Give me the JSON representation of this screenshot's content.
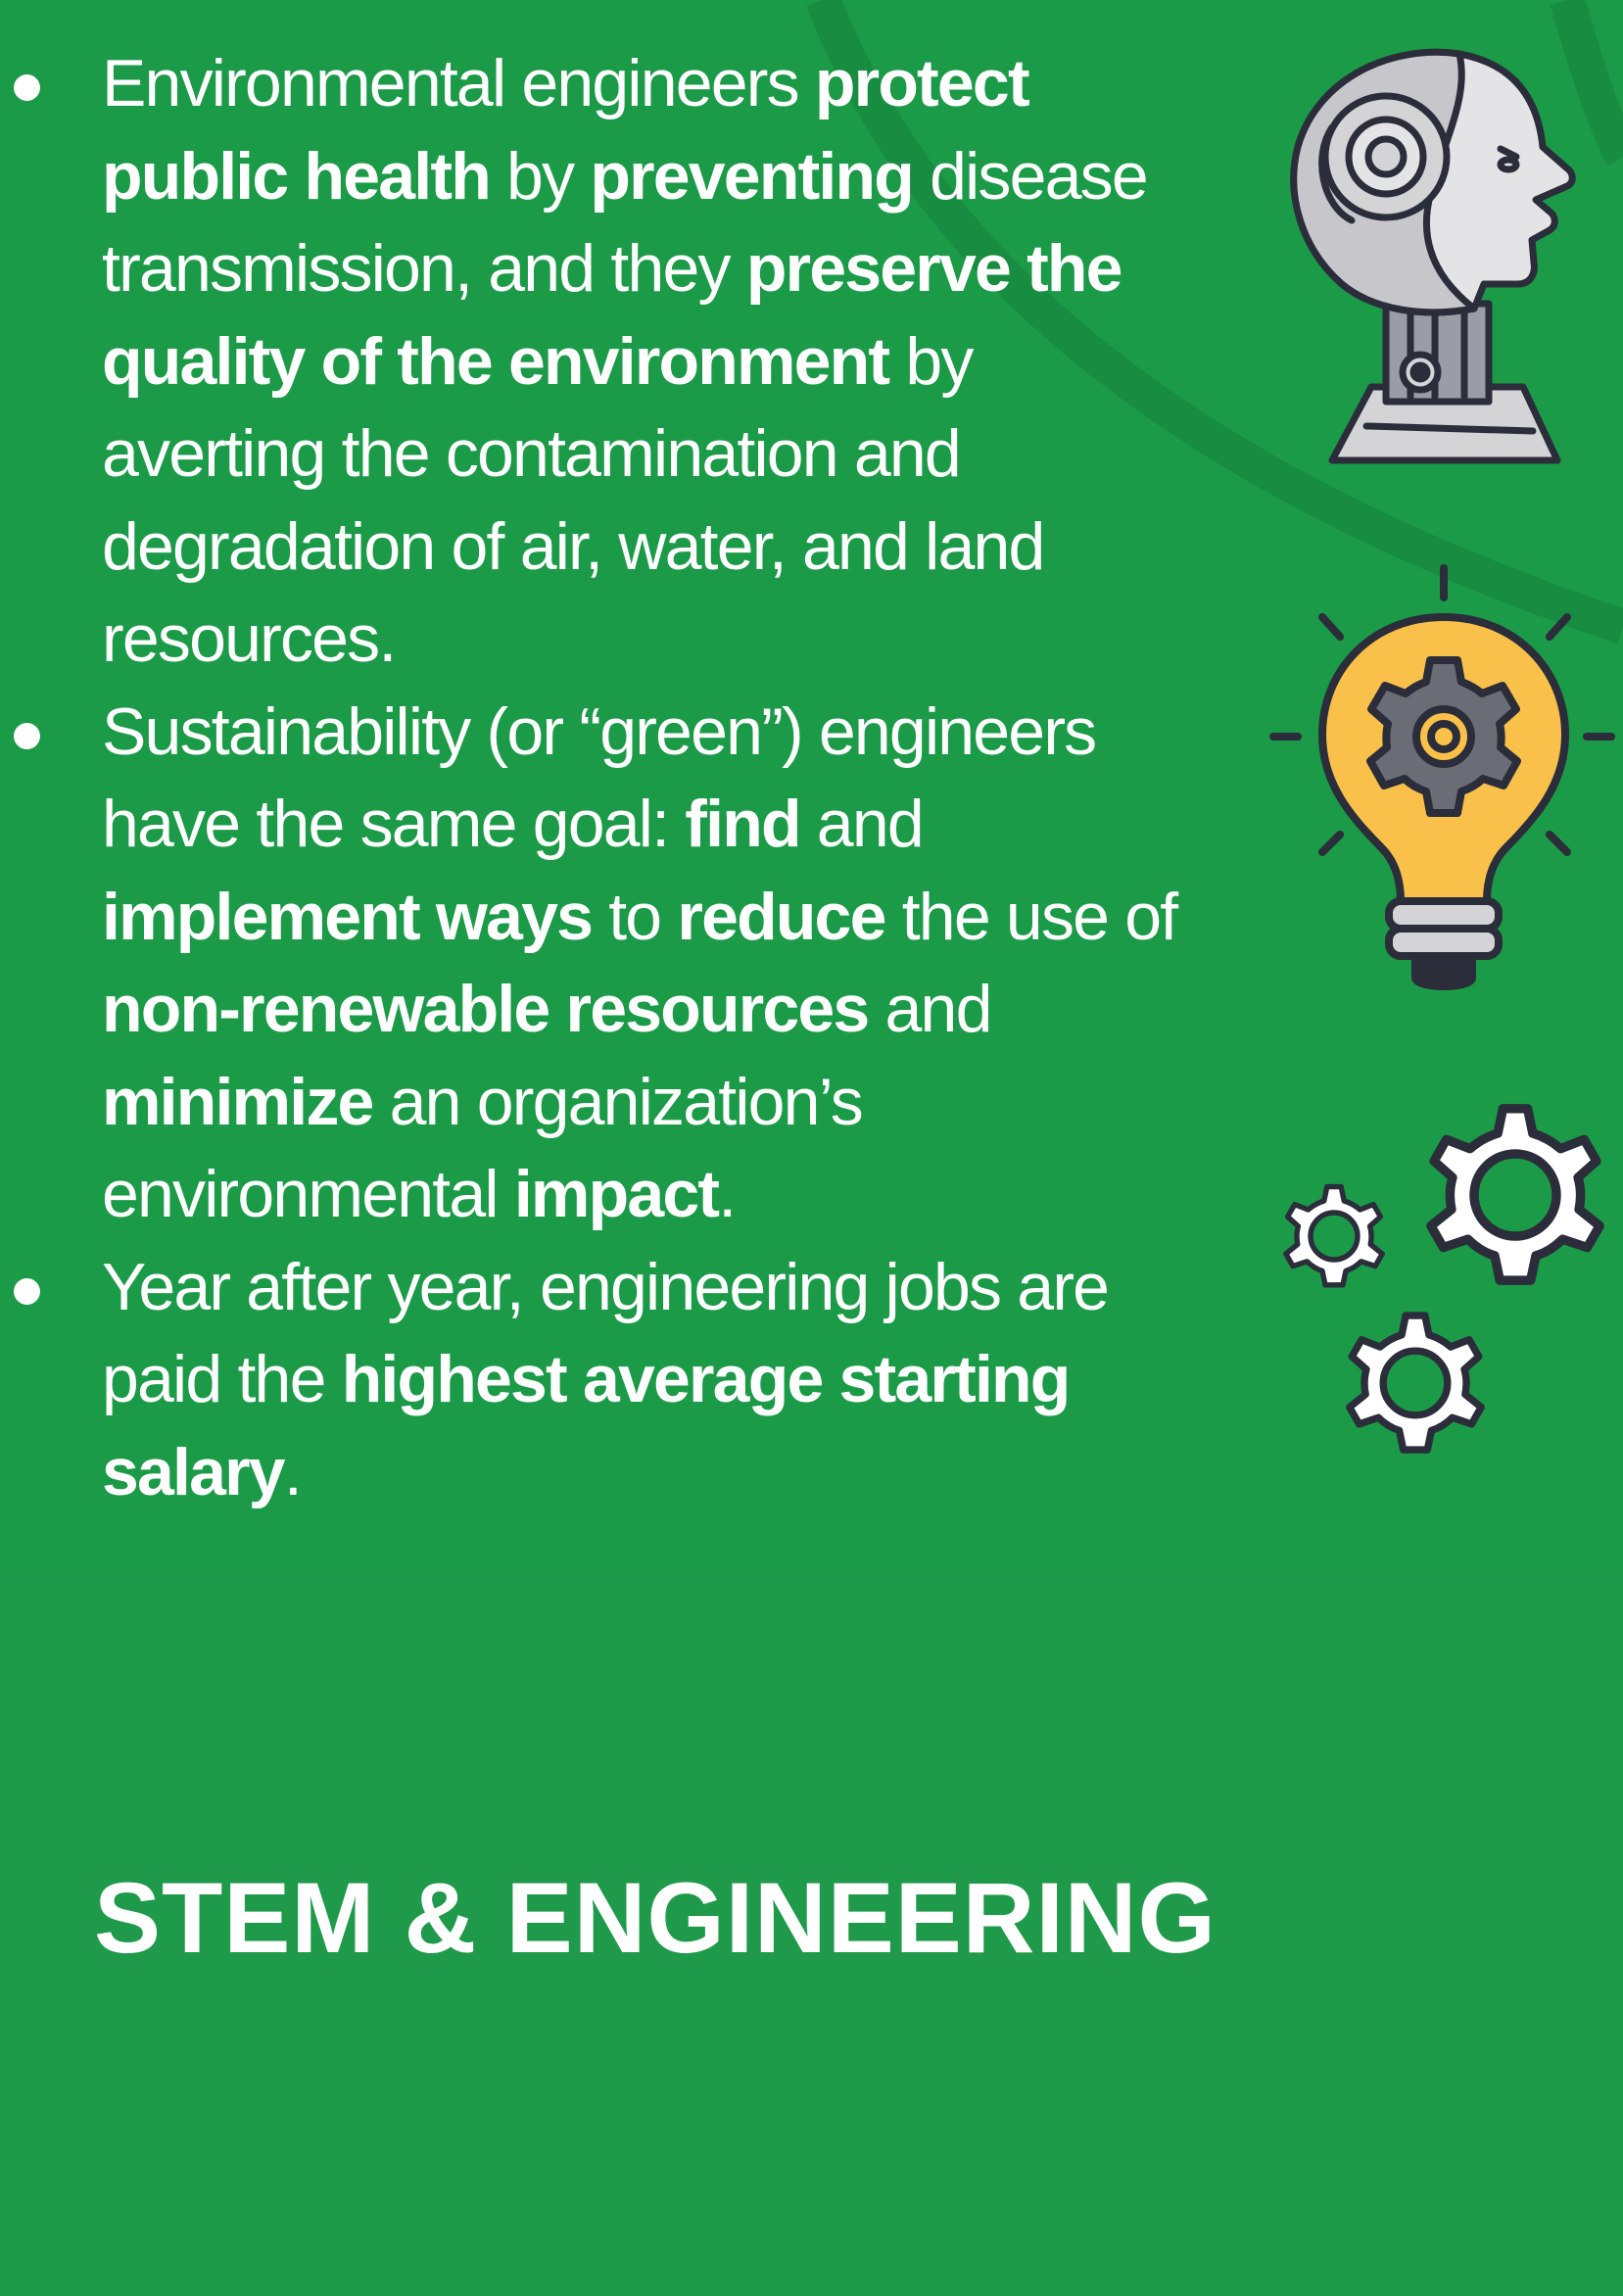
{
  "bullets": [
    {
      "lines": [
        [
          {
            "t": "Environmental engineers ",
            "b": false
          },
          {
            "t": "protect",
            "b": true
          }
        ],
        [
          {
            "t": "public health",
            "b": true
          },
          {
            "t": " by ",
            "b": false
          },
          {
            "t": "preventing",
            "b": true
          },
          {
            "t": " disease",
            "b": false
          }
        ],
        [
          {
            "t": "transmission, and they ",
            "b": false
          },
          {
            "t": "preserve the",
            "b": true
          }
        ],
        [
          {
            "t": "quality of the environment",
            "b": true
          },
          {
            "t": " by",
            "b": false
          }
        ],
        [
          {
            "t": "averting the contamination and",
            "b": false
          }
        ],
        [
          {
            "t": "degradation of air, water, and land",
            "b": false
          }
        ],
        [
          {
            "t": "resources.",
            "b": false
          }
        ]
      ]
    },
    {
      "lines": [
        [
          {
            "t": "Sustainability (or “green”) engineers",
            "b": false
          }
        ],
        [
          {
            "t": "have the same goal: ",
            "b": false
          },
          {
            "t": "find",
            "b": true
          },
          {
            "t": " and",
            "b": false
          }
        ],
        [
          {
            "t": "implement ways",
            "b": true
          },
          {
            "t": " to ",
            "b": false
          },
          {
            "t": "reduce",
            "b": true
          },
          {
            "t": " the use of",
            "b": false
          }
        ],
        [
          {
            "t": "non-renewable resources",
            "b": true
          },
          {
            "t": " and",
            "b": false
          }
        ],
        [
          {
            "t": "minimize",
            "b": true
          },
          {
            "t": " an organization’s",
            "b": false
          }
        ],
        [
          {
            "t": "environmental ",
            "b": false
          },
          {
            "t": "impact",
            "b": true
          },
          {
            "t": ".",
            "b": false
          }
        ]
      ]
    },
    {
      "lines": [
        [
          {
            "t": "Year after year, engineering jobs are",
            "b": false
          }
        ],
        [
          {
            "t": "paid the ",
            "b": false
          },
          {
            "t": "highest average starting",
            "b": true
          }
        ],
        [
          {
            "t": "salary",
            "b": true
          },
          {
            "t": ".",
            "b": false
          }
        ]
      ]
    }
  ],
  "section_title": "STEM & ENGINEERING",
  "icons": {
    "robot": "robot-head-icon",
    "bulb": "lightbulb-gear-icon",
    "gears": "gears-icon"
  },
  "colors": {
    "background": "#1b9a48",
    "text": "#ffffff",
    "bulb": "#f9c04a",
    "robot_grey": "#d4d4d6",
    "outline": "#2b2d3a"
  }
}
